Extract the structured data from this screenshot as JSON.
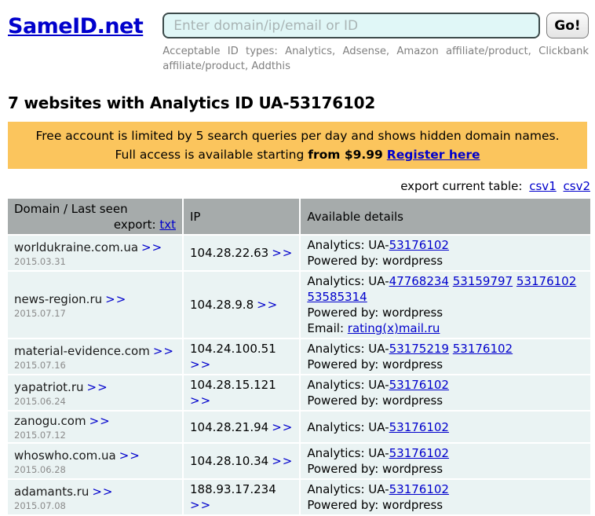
{
  "header": {
    "logo": "SameID.net",
    "search_placeholder": "Enter domain/ip/email or ID",
    "go_label": "Go!",
    "helper": "Acceptable ID types: Analytics, Adsense, Amazon affiliate/product, Clickbank affiliate/product, Addthis"
  },
  "page_title": "7 websites with Analytics ID UA-53176102",
  "banner": {
    "line1": "Free account is limited by 5 search queries per day and shows hidden domain names.",
    "line2_prefix": "Full access is available starting",
    "line2_bold": "from $9.99",
    "register_link": "Register here"
  },
  "export_bar": {
    "label": "export current table:",
    "csv1": "csv1",
    "csv2": "csv2"
  },
  "table": {
    "headers": {
      "domain": "Domain / Last seen",
      "export_label": "export:",
      "export_link": "txt",
      "ip": "IP",
      "details": "Available details"
    },
    "analytics_prefix": "Analytics: UA-",
    "more_symbol": ">>",
    "rows": [
      {
        "domain": "worldukraine.com.ua",
        "date": "2015.03.31",
        "ip": "104.28.22.63",
        "ids": [
          "53176102"
        ],
        "powered": "Powered by: wordpress"
      },
      {
        "domain": "news-region.ru",
        "date": "2015.07.17",
        "ip": "104.28.9.8",
        "ids": [
          "47768234",
          "53159797",
          "53176102",
          "53585314"
        ],
        "powered": "Powered by: wordpress",
        "email_label": "Email:",
        "email": "rating(x)mail.ru"
      },
      {
        "domain": "material-evidence.com",
        "date": "2015.07.16",
        "ip": "104.24.100.51",
        "ids": [
          "53175219",
          "53176102"
        ],
        "powered": "Powered by: wordpress"
      },
      {
        "domain": "yapatriot.ru",
        "date": "2015.06.24",
        "ip": "104.28.15.121",
        "ids": [
          "53176102"
        ],
        "powered": "Powered by: wordpress"
      },
      {
        "domain": "zanogu.com",
        "date": "2015.07.12",
        "ip": "104.28.21.94",
        "ids": [
          "53176102"
        ]
      },
      {
        "domain": "whoswho.com.ua",
        "date": "2015.06.28",
        "ip": "104.28.10.34",
        "ids": [
          "53176102"
        ],
        "powered": "Powered by: wordpress"
      },
      {
        "domain": "adamants.ru",
        "date": "2015.07.08",
        "ip": "188.93.17.234",
        "ids": [
          "53176102"
        ],
        "powered": "Powered by: wordpress"
      }
    ]
  },
  "colors": {
    "link_blue": "#0000cc",
    "banner_bg": "#fbc55d",
    "table_header_bg": "#a6abab",
    "table_row_bg": "#eaf3f3",
    "search_input_bg": "#e0f7f7",
    "helper_gray": "#808080"
  }
}
